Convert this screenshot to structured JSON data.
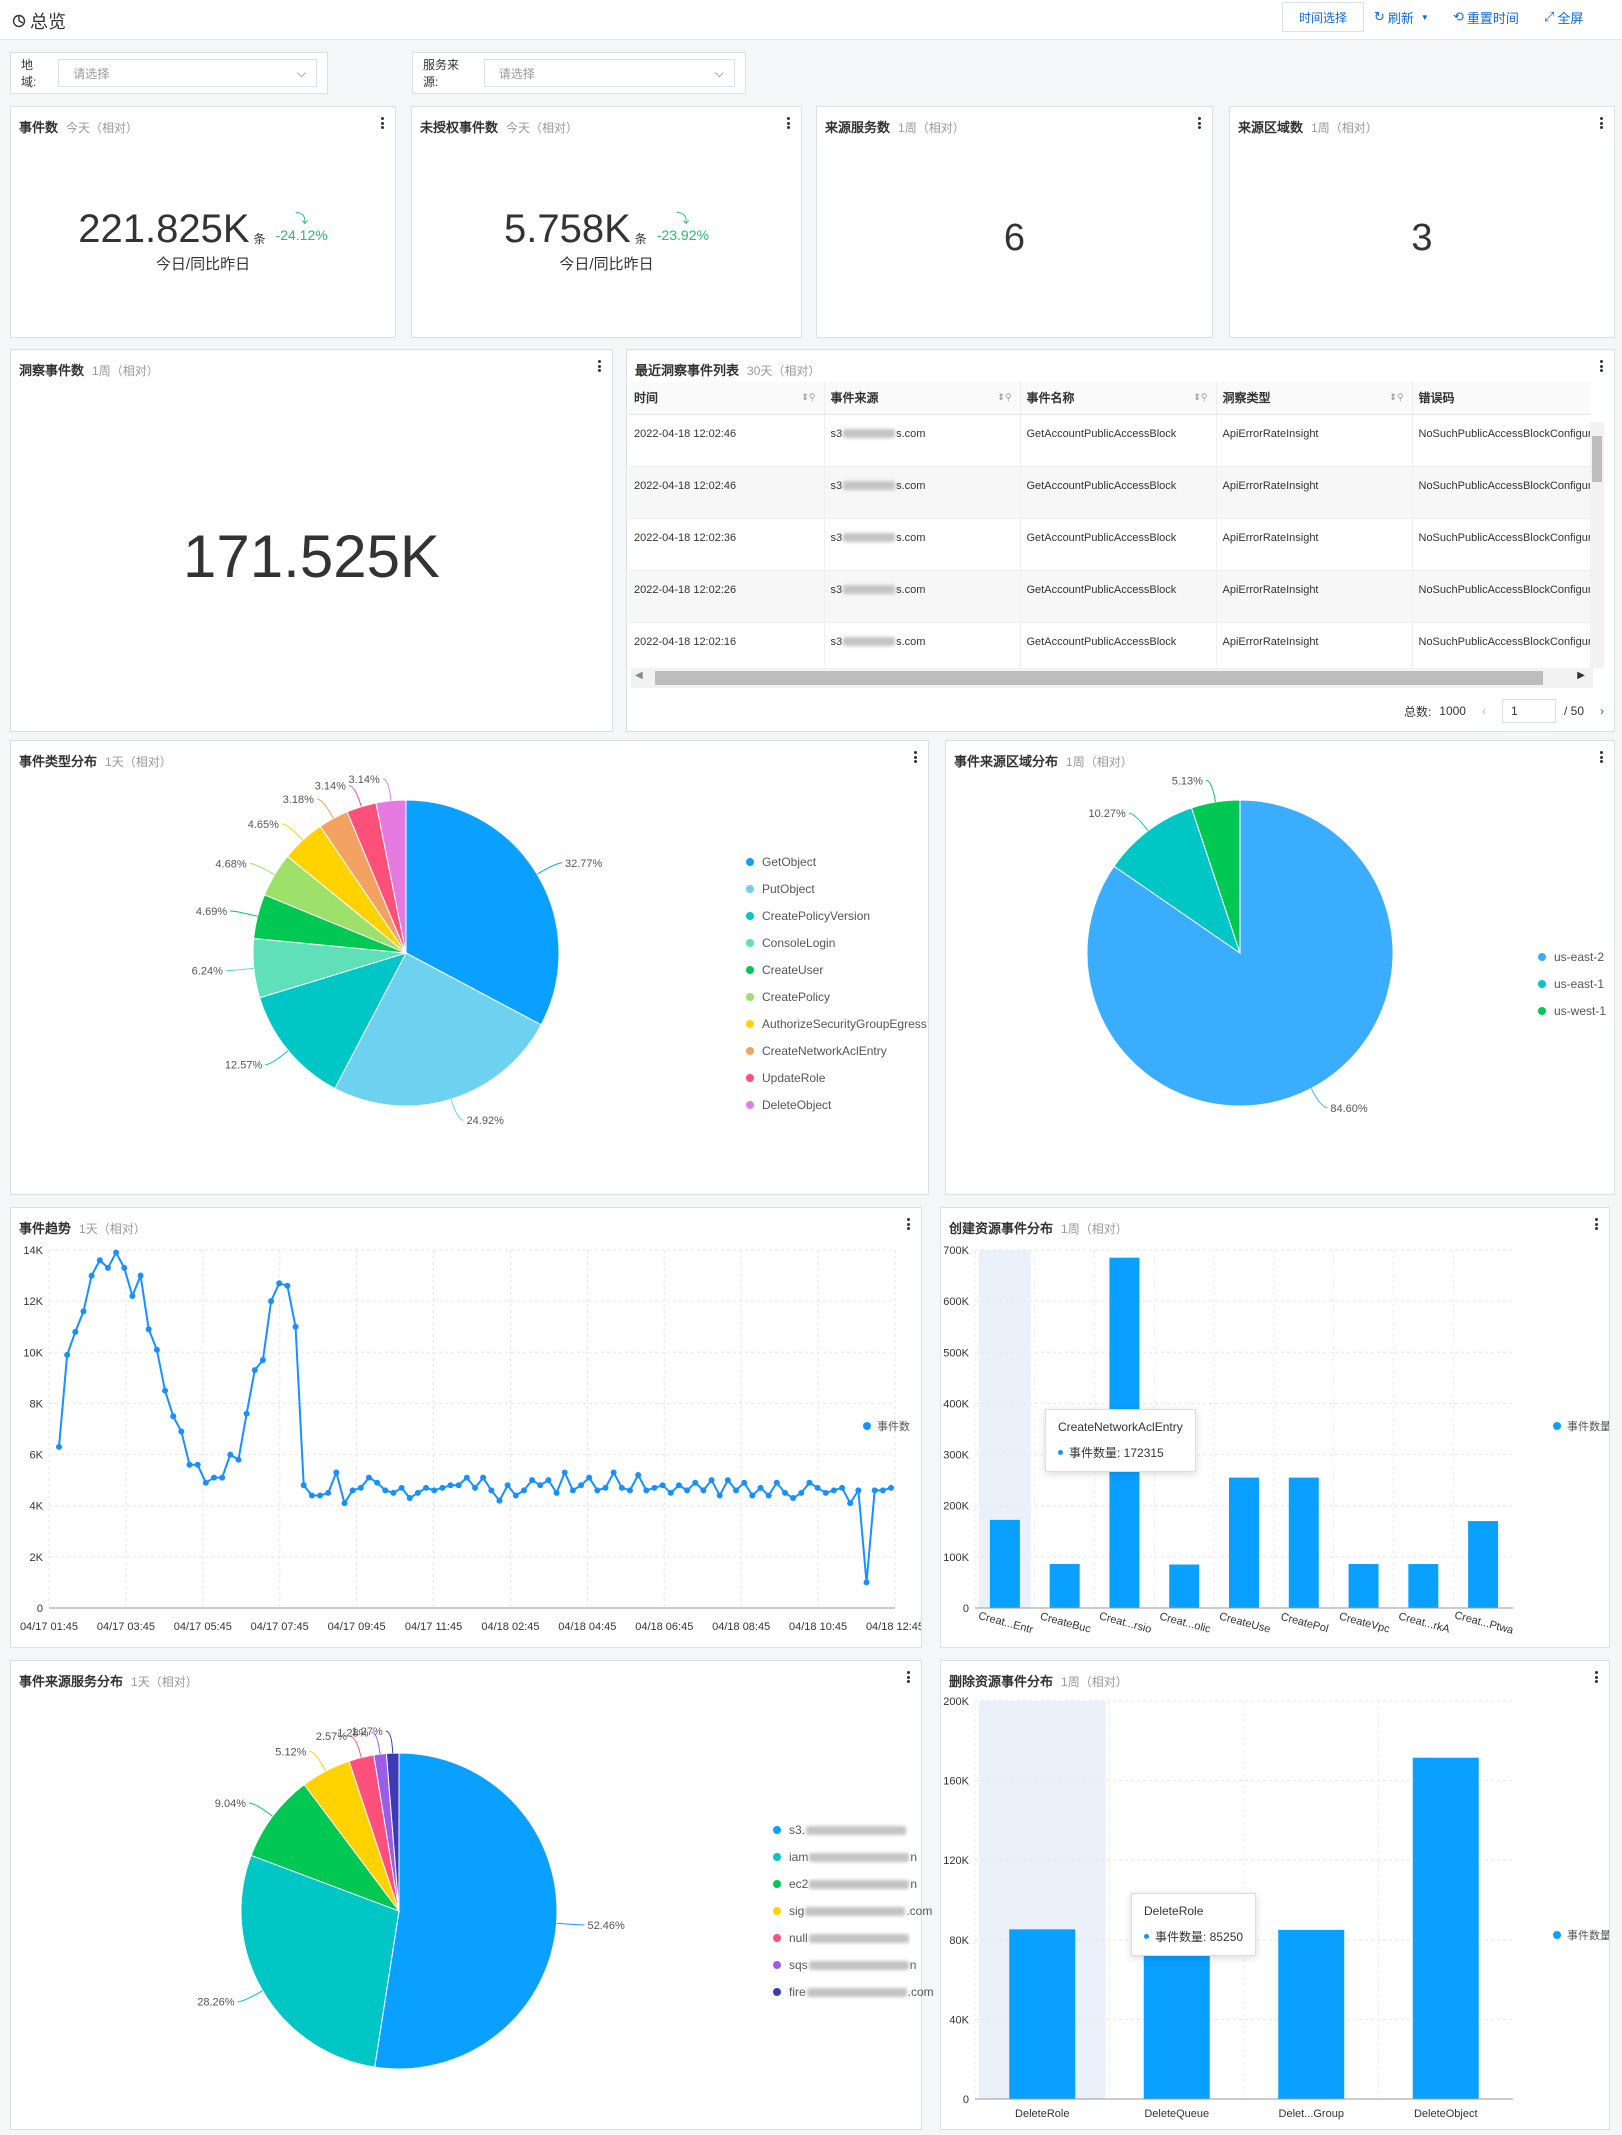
{
  "header": {
    "title": "总览",
    "time_select": "时间选择",
    "refresh": "刷新",
    "reset_time": "重置时间",
    "fullscreen": "全屏"
  },
  "filters": {
    "region_label": "地域:",
    "region_placeholder": "请选择",
    "source_label": "服务来源:",
    "source_placeholder": "请选择"
  },
  "kpis": {
    "events": {
      "title": "事件数",
      "range": "今天（相对）",
      "value": "221.825K",
      "unit": "条",
      "change": "-24.12%",
      "caption": "今日/同比昨日"
    },
    "unauth": {
      "title": "未授权事件数",
      "range": "今天（相对）",
      "value": "5.758K",
      "unit": "条",
      "change": "-23.92%",
      "caption": "今日/同比昨日"
    },
    "services": {
      "title": "来源服务数",
      "range": "1周（相对）",
      "value": "6"
    },
    "regions": {
      "title": "来源区域数",
      "range": "1周（相对）",
      "value": "3"
    },
    "insight": {
      "title": "洞察事件数",
      "range": "1周（相对）",
      "value": "171.525K"
    }
  },
  "insight_table": {
    "title": "最近洞察事件列表",
    "range": "30天（相对）",
    "columns": [
      "时间",
      "事件来源",
      "事件名称",
      "洞察类型",
      "错误码"
    ],
    "rows": [
      [
        "2022-04-18 12:02:46",
        "s3",
        "GetAccountPublicAccessBlock",
        "ApiErrorRateInsight",
        "NoSuchPublicAccessBlockConfiguration"
      ],
      [
        "2022-04-18 12:02:46",
        "s3",
        "GetAccountPublicAccessBlock",
        "ApiErrorRateInsight",
        "NoSuchPublicAccessBlockConfiguration"
      ],
      [
        "2022-04-18 12:02:36",
        "s3",
        "GetAccountPublicAccessBlock",
        "ApiErrorRateInsight",
        "NoSuchPublicAccessBlockConfiguration"
      ],
      [
        "2022-04-18 12:02:26",
        "s3",
        "GetAccountPublicAccessBlock",
        "ApiErrorRateInsight",
        "NoSuchPublicAccessBlockConfiguration"
      ],
      [
        "2022-04-18 12:02:16",
        "s3",
        "GetAccountPublicAccessBlock",
        "ApiErrorRateInsight",
        "NoSuchPublicAccessBlockConfiguration"
      ]
    ],
    "source_suffix": "s.com",
    "total_label": "总数:",
    "total": "1000",
    "page": "1",
    "pages": "/ 50"
  },
  "panels": {
    "type_dist": {
      "title": "事件类型分布",
      "range": "1天（相对）"
    },
    "region_dist": {
      "title": "事件来源区域分布",
      "range": "1周（相对）"
    },
    "trend": {
      "title": "事件趋势",
      "range": "1天（相对）"
    },
    "create_dist": {
      "title": "创建资源事件分布",
      "range": "1周（相对）"
    },
    "service_dist": {
      "title": "事件来源服务分布",
      "range": "1天（相对）"
    },
    "delete_dist": {
      "title": "删除资源事件分布",
      "range": "1周（相对）"
    }
  },
  "tooltips": {
    "create": {
      "name": "CreateNetworkAclEntry",
      "label": "事件数量: 172315"
    },
    "delete": {
      "name": "DeleteRole",
      "label": "事件数量: 85250"
    }
  },
  "colors": {
    "accent": "#0a6bd6",
    "positive": "#1fbf6f",
    "bar": "#0aa0ff"
  },
  "chart_data": [
    {
      "type": "pie",
      "id": "type_dist",
      "categories": [
        "GetObject",
        "PutObject",
        "CreatePolicyVersion",
        "ConsoleLogin",
        "CreateUser",
        "CreatePolicy",
        "AuthorizeSecurityGroupEgress",
        "CreateNetworkAclEntry",
        "UpdateRole",
        "DeleteObject"
      ],
      "values": [
        32.77,
        24.92,
        12.57,
        6.24,
        4.69,
        4.68,
        4.65,
        3.18,
        3.14,
        3.14
      ],
      "labels": [
        "32.77%",
        "24.92%",
        "12.57%",
        "6.24%",
        "4.69%",
        "4.68%",
        "4.65%",
        "3.18%",
        "3.14%",
        "3.14%"
      ],
      "colors": [
        "#0aa0ff",
        "#6dd1f0",
        "#00c6c6",
        "#5fe0b8",
        "#00c853",
        "#9de06a",
        "#ffd200",
        "#f4a261",
        "#ff4f7b",
        "#e57be0"
      ],
      "legend": "right"
    },
    {
      "type": "pie",
      "id": "region_dist",
      "categories": [
        "us-east-2",
        "us-east-1",
        "us-west-1"
      ],
      "values": [
        84.6,
        10.27,
        5.13
      ],
      "labels": [
        "84.60%",
        "10.27%",
        "5.13%"
      ],
      "colors": [
        "#3badff",
        "#00c6c6",
        "#00c853"
      ],
      "legend": "right"
    },
    {
      "type": "line",
      "id": "trend",
      "series": [
        {
          "name": "事件数",
          "values": [
            6300,
            9900,
            10800,
            11600,
            13000,
            13600,
            13300,
            13900,
            13300,
            12200,
            13000,
            10900,
            10100,
            8500,
            7500,
            6900,
            5600,
            5600,
            4900,
            5100,
            5100,
            6000,
            5800,
            7600,
            9300,
            9700,
            12000,
            12700,
            12600,
            11000,
            4800,
            4400,
            4400,
            4500,
            5300,
            4100,
            4600,
            4700,
            5100,
            4900,
            4600,
            4500,
            4700,
            4300,
            4500,
            4700,
            4600,
            4700,
            4800,
            4800,
            5100,
            4700,
            5100,
            4600,
            4200,
            4800,
            4400,
            4600,
            5000,
            4800,
            5000,
            4500,
            5300,
            4600,
            4800,
            5100,
            4600,
            4700,
            5300,
            4700,
            4600,
            5200,
            4600,
            4700,
            4800,
            4500,
            4800,
            4600,
            4900,
            4600,
            5000,
            4400,
            5000,
            4600,
            4900,
            4400,
            4700,
            4400,
            4900,
            4500,
            4300,
            4500,
            4900,
            4700,
            4500,
            4600,
            4700,
            4100,
            4600,
            1000,
            4600,
            4600,
            4700
          ]
        }
      ],
      "x_ticks": [
        "04/17 01:45",
        "04/17 03:45",
        "04/17 05:45",
        "04/17 07:45",
        "04/17 09:45",
        "04/17 11:45",
        "04/18 02:45",
        "04/18 04:45",
        "04/18 06:45",
        "04/18 08:45",
        "04/18 10:45",
        "04/18 12:45"
      ],
      "y_ticks": [
        "0",
        "2K",
        "4K",
        "6K",
        "8K",
        "10K",
        "12K",
        "14K"
      ],
      "ylim": [
        0,
        14000
      ],
      "grid": true,
      "legend": "right"
    },
    {
      "type": "bar",
      "id": "create_dist",
      "categories": [
        "Creat...Entr",
        "CreateBuc",
        "Creat...rsio",
        "Creat...olic",
        "CreateUse",
        "CreatePol",
        "CreateVpc",
        "Creat...rkA",
        "Creat...Ptwa"
      ],
      "series": [
        {
          "name": "事件数量",
          "values": [
            172315,
            86000,
            685000,
            85000,
            255000,
            255000,
            86000,
            86000,
            170000
          ]
        }
      ],
      "y_ticks": [
        "0",
        "100K",
        "200K",
        "300K",
        "400K",
        "500K",
        "600K",
        "700K"
      ],
      "ylim": [
        0,
        700000
      ],
      "highlight": 0,
      "legend": "right"
    },
    {
      "type": "pie",
      "id": "service_dist",
      "categories": [
        "s3.",
        "iam",
        "ec2",
        "sig",
        "null",
        "sqs",
        "fire"
      ],
      "label_suffix": [
        "",
        "n",
        "n",
        ".com",
        "",
        "n",
        ".com"
      ],
      "values": [
        52.46,
        28.26,
        9.04,
        5.12,
        2.57,
        1.28,
        1.27
      ],
      "labels": [
        "52.46%",
        "28.26%",
        "9.04%",
        "5.12%",
        "2.57%",
        "1.28%",
        "1.27%"
      ],
      "colors": [
        "#0aa0ff",
        "#00c6c6",
        "#00c853",
        "#ffd200",
        "#ff4f7b",
        "#9b5de5",
        "#3b3bb3"
      ],
      "legend": "right"
    },
    {
      "type": "bar",
      "id": "delete_dist",
      "categories": [
        "DeleteRole",
        "DeleteQueue",
        "Delet...Group",
        "DeleteObject"
      ],
      "series": [
        {
          "name": "事件数量",
          "values": [
            85250,
            85000,
            85000,
            171500
          ]
        }
      ],
      "y_ticks": [
        "0",
        "40K",
        "80K",
        "120K",
        "160K",
        "200K"
      ],
      "ylim": [
        0,
        200000
      ],
      "highlight": 0,
      "legend": "right"
    }
  ]
}
